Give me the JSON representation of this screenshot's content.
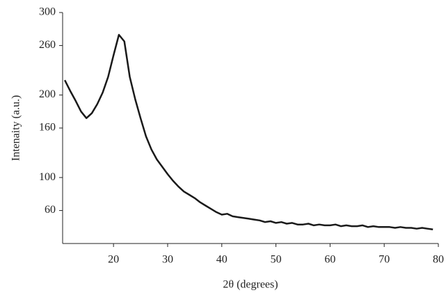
{
  "chart_data": {
    "type": "line",
    "xlabel": "2θ (degrees)",
    "ylabel": "Intenaity (a.u.)",
    "x": [
      11,
      12,
      13,
      14,
      15,
      16,
      17,
      18,
      19,
      20,
      21,
      22,
      23,
      24,
      25,
      26,
      27,
      28,
      29,
      30,
      31,
      32,
      33,
      34,
      35,
      36,
      37,
      38,
      39,
      40,
      41,
      42,
      43,
      44,
      45,
      46,
      47,
      48,
      49,
      50,
      51,
      52,
      53,
      54,
      55,
      56,
      57,
      58,
      59,
      60,
      61,
      62,
      63,
      64,
      65,
      66,
      67,
      68,
      69,
      70,
      71,
      72,
      73,
      74,
      75,
      76,
      77,
      78,
      79
    ],
    "series": [
      {
        "color": "#1a1a1a",
        "values": [
          218,
          205,
          193,
          180,
          172,
          178,
          189,
          203,
          222,
          248,
          273,
          265,
          222,
          195,
          172,
          150,
          134,
          122,
          113,
          104,
          96,
          89,
          83,
          79,
          75,
          70,
          66,
          62,
          58,
          55,
          56,
          53,
          52,
          51,
          50,
          49,
          48,
          46,
          47,
          45,
          46,
          44,
          45,
          43,
          43,
          44,
          42,
          43,
          42,
          42,
          43,
          41,
          42,
          41,
          41,
          42,
          40,
          41,
          40,
          40,
          40,
          39,
          40,
          39,
          39,
          38,
          39,
          38,
          37
        ]
      }
    ],
    "xlim": [
      10.6,
      80
    ],
    "ylim": [
      20,
      300
    ],
    "xticks": [
      20,
      30,
      40,
      50,
      60,
      70,
      80
    ],
    "yticks": [
      60,
      100,
      160,
      200,
      260,
      300
    ]
  }
}
